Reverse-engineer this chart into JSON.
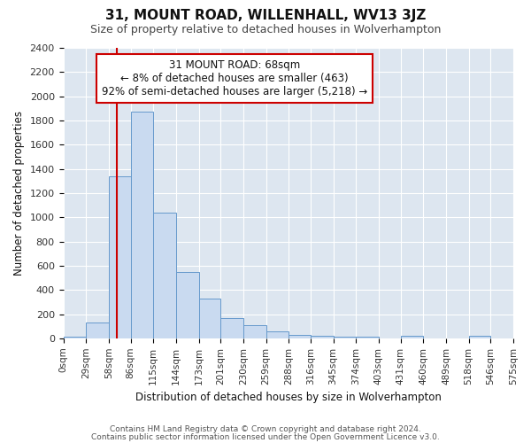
{
  "title": "31, MOUNT ROAD, WILLENHALL, WV13 3JZ",
  "subtitle": "Size of property relative to detached houses in Wolverhampton",
  "xlabel": "Distribution of detached houses by size in Wolverhampton",
  "ylabel": "Number of detached properties",
  "bin_edges": [
    0,
    29,
    58,
    86,
    115,
    144,
    173,
    201,
    230,
    259,
    288,
    316,
    345,
    374,
    403,
    431,
    460,
    489,
    518,
    546,
    575
  ],
  "bar_heights": [
    15,
    130,
    1340,
    1870,
    1040,
    550,
    330,
    170,
    110,
    60,
    30,
    20,
    15,
    15,
    0,
    20,
    0,
    0,
    20,
    0
  ],
  "bar_color": "#c9daf0",
  "bar_edge_color": "#6699cc",
  "ylim": [
    0,
    2400
  ],
  "yticks": [
    0,
    200,
    400,
    600,
    800,
    1000,
    1200,
    1400,
    1600,
    1800,
    2000,
    2200,
    2400
  ],
  "property_line_x": 68,
  "property_line_color": "#cc0000",
  "annotation_line1": "31 MOUNT ROAD: 68sqm",
  "annotation_line2": "← 8% of detached houses are smaller (463)",
  "annotation_line3": "92% of semi-detached houses are larger (5,218) →",
  "annotation_box_facecolor": "#ffffff",
  "annotation_box_edgecolor": "#cc0000",
  "figure_facecolor": "#ffffff",
  "axes_facecolor": "#dde6f0",
  "grid_color": "#ffffff",
  "footer1": "Contains HM Land Registry data © Crown copyright and database right 2024.",
  "footer2": "Contains public sector information licensed under the Open Government Licence v3.0.",
  "tick_label_color": "#333333",
  "title_color": "#111111",
  "subtitle_color": "#444444",
  "xlabel_color": "#111111",
  "ylabel_color": "#111111"
}
